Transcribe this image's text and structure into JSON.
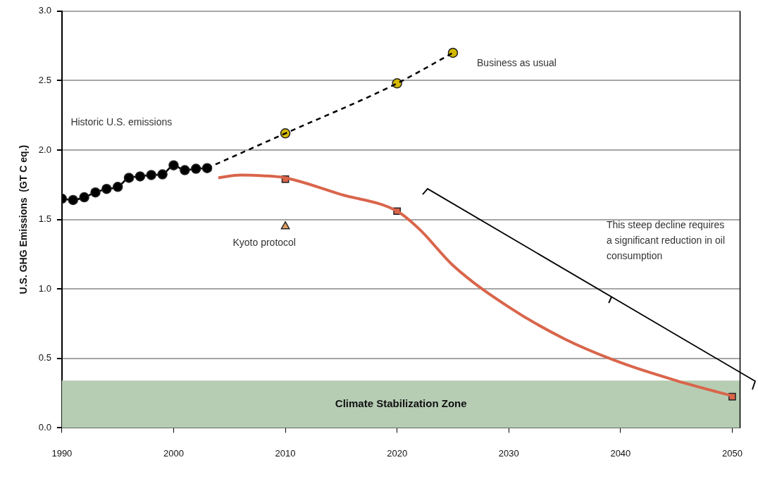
{
  "chart_data": {
    "type": "line",
    "ylabel": "U.S. GHG Emissions  (GT C eq.)",
    "xlim": [
      1990,
      2050.7
    ],
    "xticks": [
      1990,
      2000,
      2010,
      2020,
      2030,
      2040,
      2050
    ],
    "ylim": [
      0,
      3
    ],
    "yticks": [
      {
        "value": 0,
        "label": "0.0"
      },
      {
        "value": 0.5,
        "label": "0.5"
      },
      {
        "value": 1,
        "label": "1.0"
      },
      {
        "value": 1.5,
        "label": "1.5"
      },
      {
        "value": 2,
        "label": "2.0"
      },
      {
        "value": 2.5,
        "label": "2.5"
      },
      {
        "value": 3,
        "label": "3.0"
      }
    ],
    "grid": "y",
    "legend": false,
    "series": [
      {
        "type": "line",
        "color": "#000000",
        "marker": "circle",
        "line_style": "solid",
        "x": [
          1990,
          1991,
          1992,
          1993,
          1994,
          1995,
          1996,
          1997,
          1998,
          1999,
          2000,
          2001,
          2002,
          2003
        ],
        "values": [
          1.65,
          1.64,
          1.66,
          1.695,
          1.72,
          1.735,
          1.8,
          1.81,
          1.82,
          1.825,
          1.89,
          1.855,
          1.865,
          1.87
        ]
      },
      {
        "type": "line",
        "color": "#000000",
        "marker": "none",
        "line_style": "dashed",
        "x": [
          2003,
          2010,
          2020,
          2025
        ],
        "values": [
          1.87,
          2.12,
          2.48,
          2.7
        ]
      },
      {
        "type": "scatter",
        "color": "#d4b800",
        "marker": "circle",
        "x": [
          2010,
          2020,
          2025
        ],
        "values": [
          2.12,
          2.48,
          2.7
        ]
      },
      {
        "type": "line",
        "color": "#d9654b",
        "marker": "none",
        "line_style": "solid",
        "x": [
          2004,
          2006,
          2008,
          2010,
          2015,
          2020,
          2022,
          2025,
          2030,
          2035,
          2040,
          2045,
          2050
        ],
        "values": [
          1.8,
          1.82,
          1.815,
          1.8,
          1.68,
          1.56,
          1.43,
          1.17,
          0.87,
          0.64,
          0.47,
          0.34,
          0.23
        ]
      },
      {
        "type": "scatter",
        "color": "#d9654b",
        "marker": "square",
        "x": [
          2010,
          2020,
          2050
        ],
        "values": [
          1.79,
          1.56,
          0.225
        ]
      },
      {
        "type": "scatter",
        "color": "#e0a060",
        "marker": "triangle",
        "x": [
          2010
        ],
        "values": [
          1.45
        ]
      }
    ],
    "bands": [
      {
        "axis": "y",
        "from": 0,
        "to": 0.34,
        "label": "Climate Stabilization Zone",
        "color": "#b6cdb4"
      }
    ],
    "annotations": [
      "Historic U.S. emissions",
      "Business as usual",
      "Kyoto protocol",
      "This steep decline requires a significant reduction in oil consumption"
    ]
  }
}
